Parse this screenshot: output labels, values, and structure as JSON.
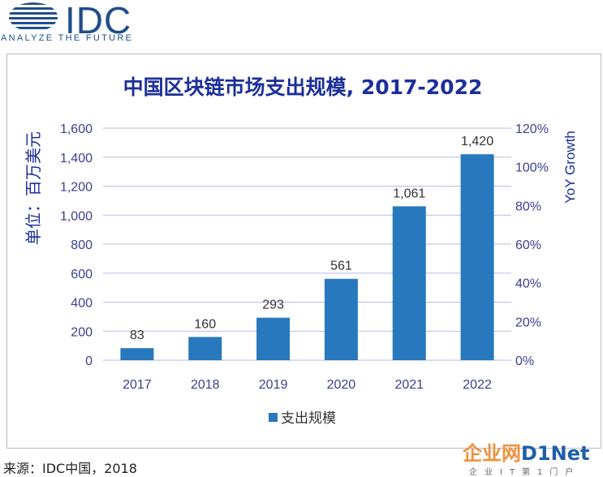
{
  "logo": {
    "wordmark": "IDC",
    "tagline": "ANALYZE THE FUTURE"
  },
  "chart_data": {
    "type": "bar",
    "title": "中国区块链市场支出规模, 2017-2022",
    "ylabel": "单位：百万美元",
    "y2label": "YoY Growth",
    "categories": [
      "2017",
      "2018",
      "2019",
      "2020",
      "2021",
      "2022"
    ],
    "series": [
      {
        "name": "支出规模",
        "values": [
          83,
          160,
          293,
          561,
          1061,
          1420
        ],
        "color": "#2878bd"
      }
    ],
    "data_labels": [
      "83",
      "160",
      "293",
      "561",
      "1,061",
      "1,420"
    ],
    "ylim": [
      0,
      1600
    ],
    "yticks": [
      "0",
      "200",
      "400",
      "600",
      "800",
      "1,000",
      "1,200",
      "1,400",
      "1,600"
    ],
    "y2lim": [
      0,
      120
    ],
    "y2ticks": [
      "0%",
      "20%",
      "40%",
      "60%",
      "80%",
      "100%",
      "120%"
    ],
    "grid": true,
    "legend_position": "bottom",
    "colors": {
      "title": "#1c2f9a",
      "axis_text": "#3b3f8f",
      "grid": "#b7bde3"
    }
  },
  "footer": {
    "source": "来源：IDC中国，2018"
  },
  "watermark": {
    "brand": "企业网D1Net",
    "subtitle": "企业IT第1门户"
  }
}
